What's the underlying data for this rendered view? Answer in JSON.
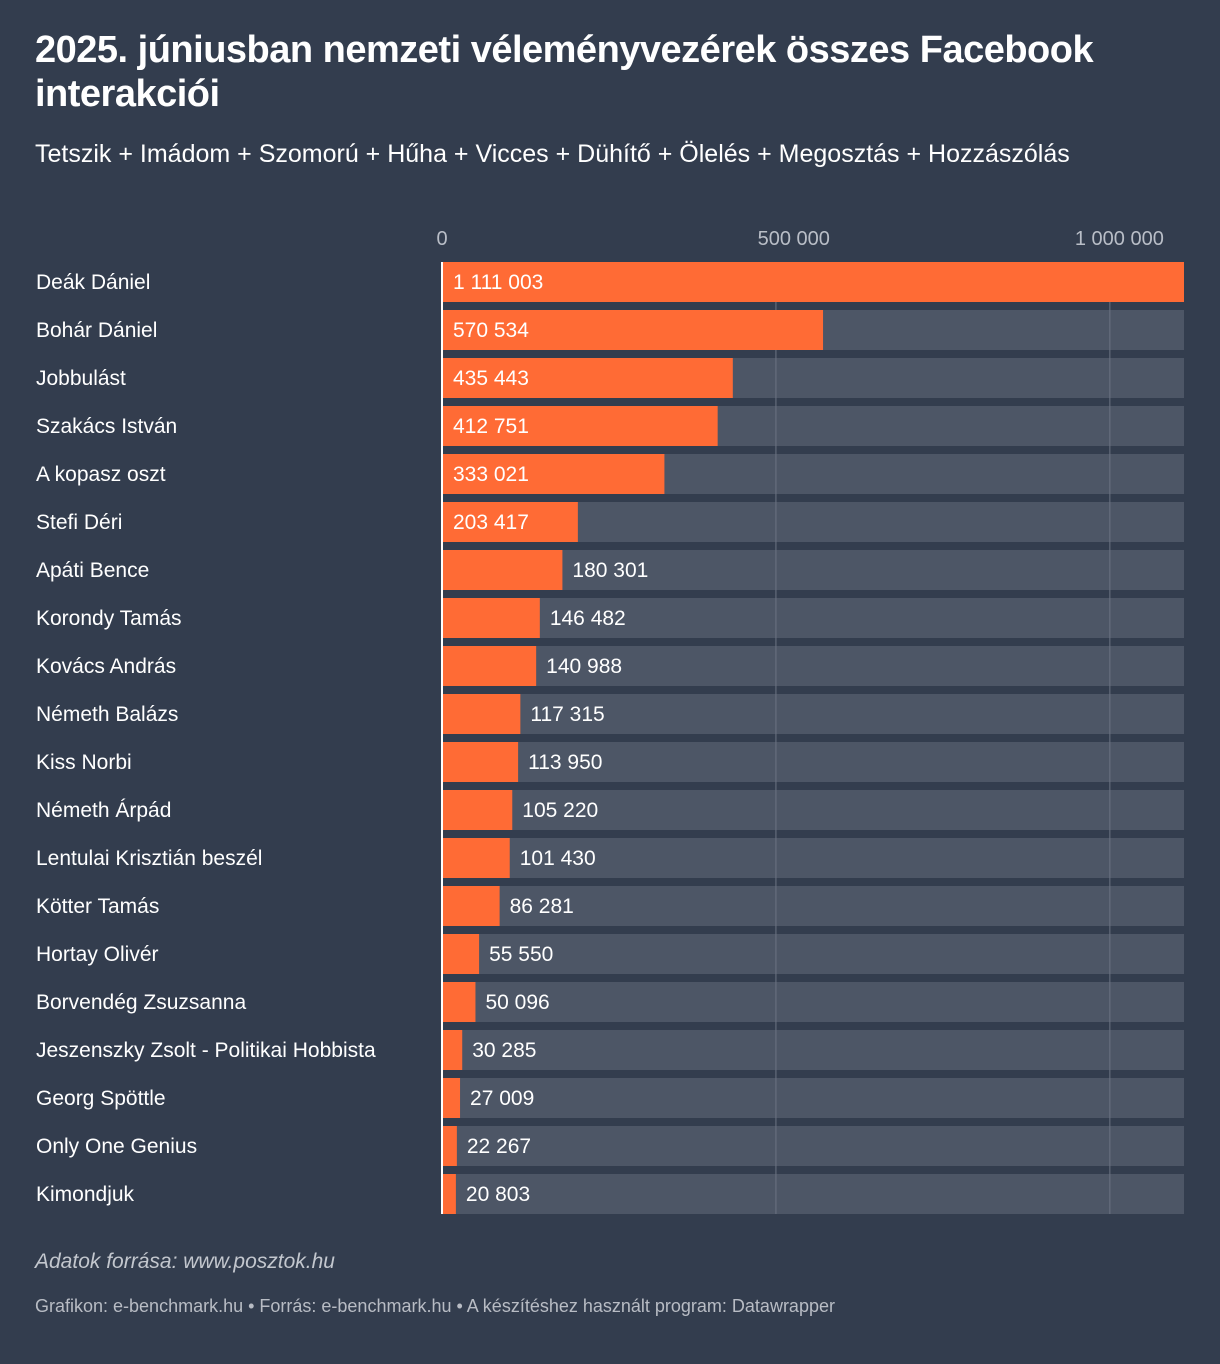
{
  "title": "2025. júniusban nemzeti véleményvezérek összes Facebook interakciói",
  "subtitle": "Tetszik + Imádom + Szomorú + Hűha + Vicces + Dühítő + Ölelés + Megosztás + Hozzászólás",
  "colors": {
    "background": "#333d4e",
    "bar": "#ff6b35",
    "track": "#4d5666",
    "gridline": "#6b7382",
    "tick_label": "#b9bec7",
    "text": "#ffffff"
  },
  "chart_data": {
    "type": "bar",
    "orientation": "horizontal",
    "title": "2025. júniusban nemzeti véleményvezérek összes Facebook interakciói",
    "xlabel": "",
    "ylabel": "",
    "xlim": [
      0,
      1111003
    ],
    "ticks": [
      0,
      500000,
      1000000
    ],
    "tick_labels": [
      "0",
      "500 000",
      "1 000 000"
    ],
    "categories": [
      "Deák Dániel",
      "Bohár Dániel",
      "Jobbulást",
      "Szakács István",
      "A kopasz oszt",
      "Stefi Déri",
      "Apáti Bence",
      "Korondy Tamás",
      "Kovács András",
      "Németh Balázs",
      "Kiss Norbi",
      "Németh Árpád",
      "Lentulai Krisztián beszél",
      "Kötter Tamás",
      "Hortay Olivér",
      "Borvendég Zsuzsanna",
      "Jeszenszky Zsolt - Politikai Hobbista",
      "Georg Spöttle",
      "Only One Genius",
      "Kimondjuk"
    ],
    "values": [
      1111003,
      570534,
      435443,
      412751,
      333021,
      203417,
      180301,
      146482,
      140988,
      117315,
      113950,
      105220,
      101430,
      86281,
      55550,
      50096,
      30285,
      27009,
      22267,
      20803
    ],
    "value_labels": [
      "1 111 003",
      "570 534",
      "435 443",
      "412 751",
      "333 021",
      "203 417",
      "180 301",
      "146 482",
      "140 988",
      "117 315",
      "113 950",
      "105 220",
      "101 430",
      "86 281",
      "55 550",
      "50 096",
      "30 285",
      "27 009",
      "22 267",
      "20 803"
    ]
  },
  "source_note": "Adatok forrása: www.posztok.hu",
  "footer": "Grafikon: e-benchmark.hu • Forrás: e-benchmark.hu • A készítéshez használt program: Datawrapper"
}
